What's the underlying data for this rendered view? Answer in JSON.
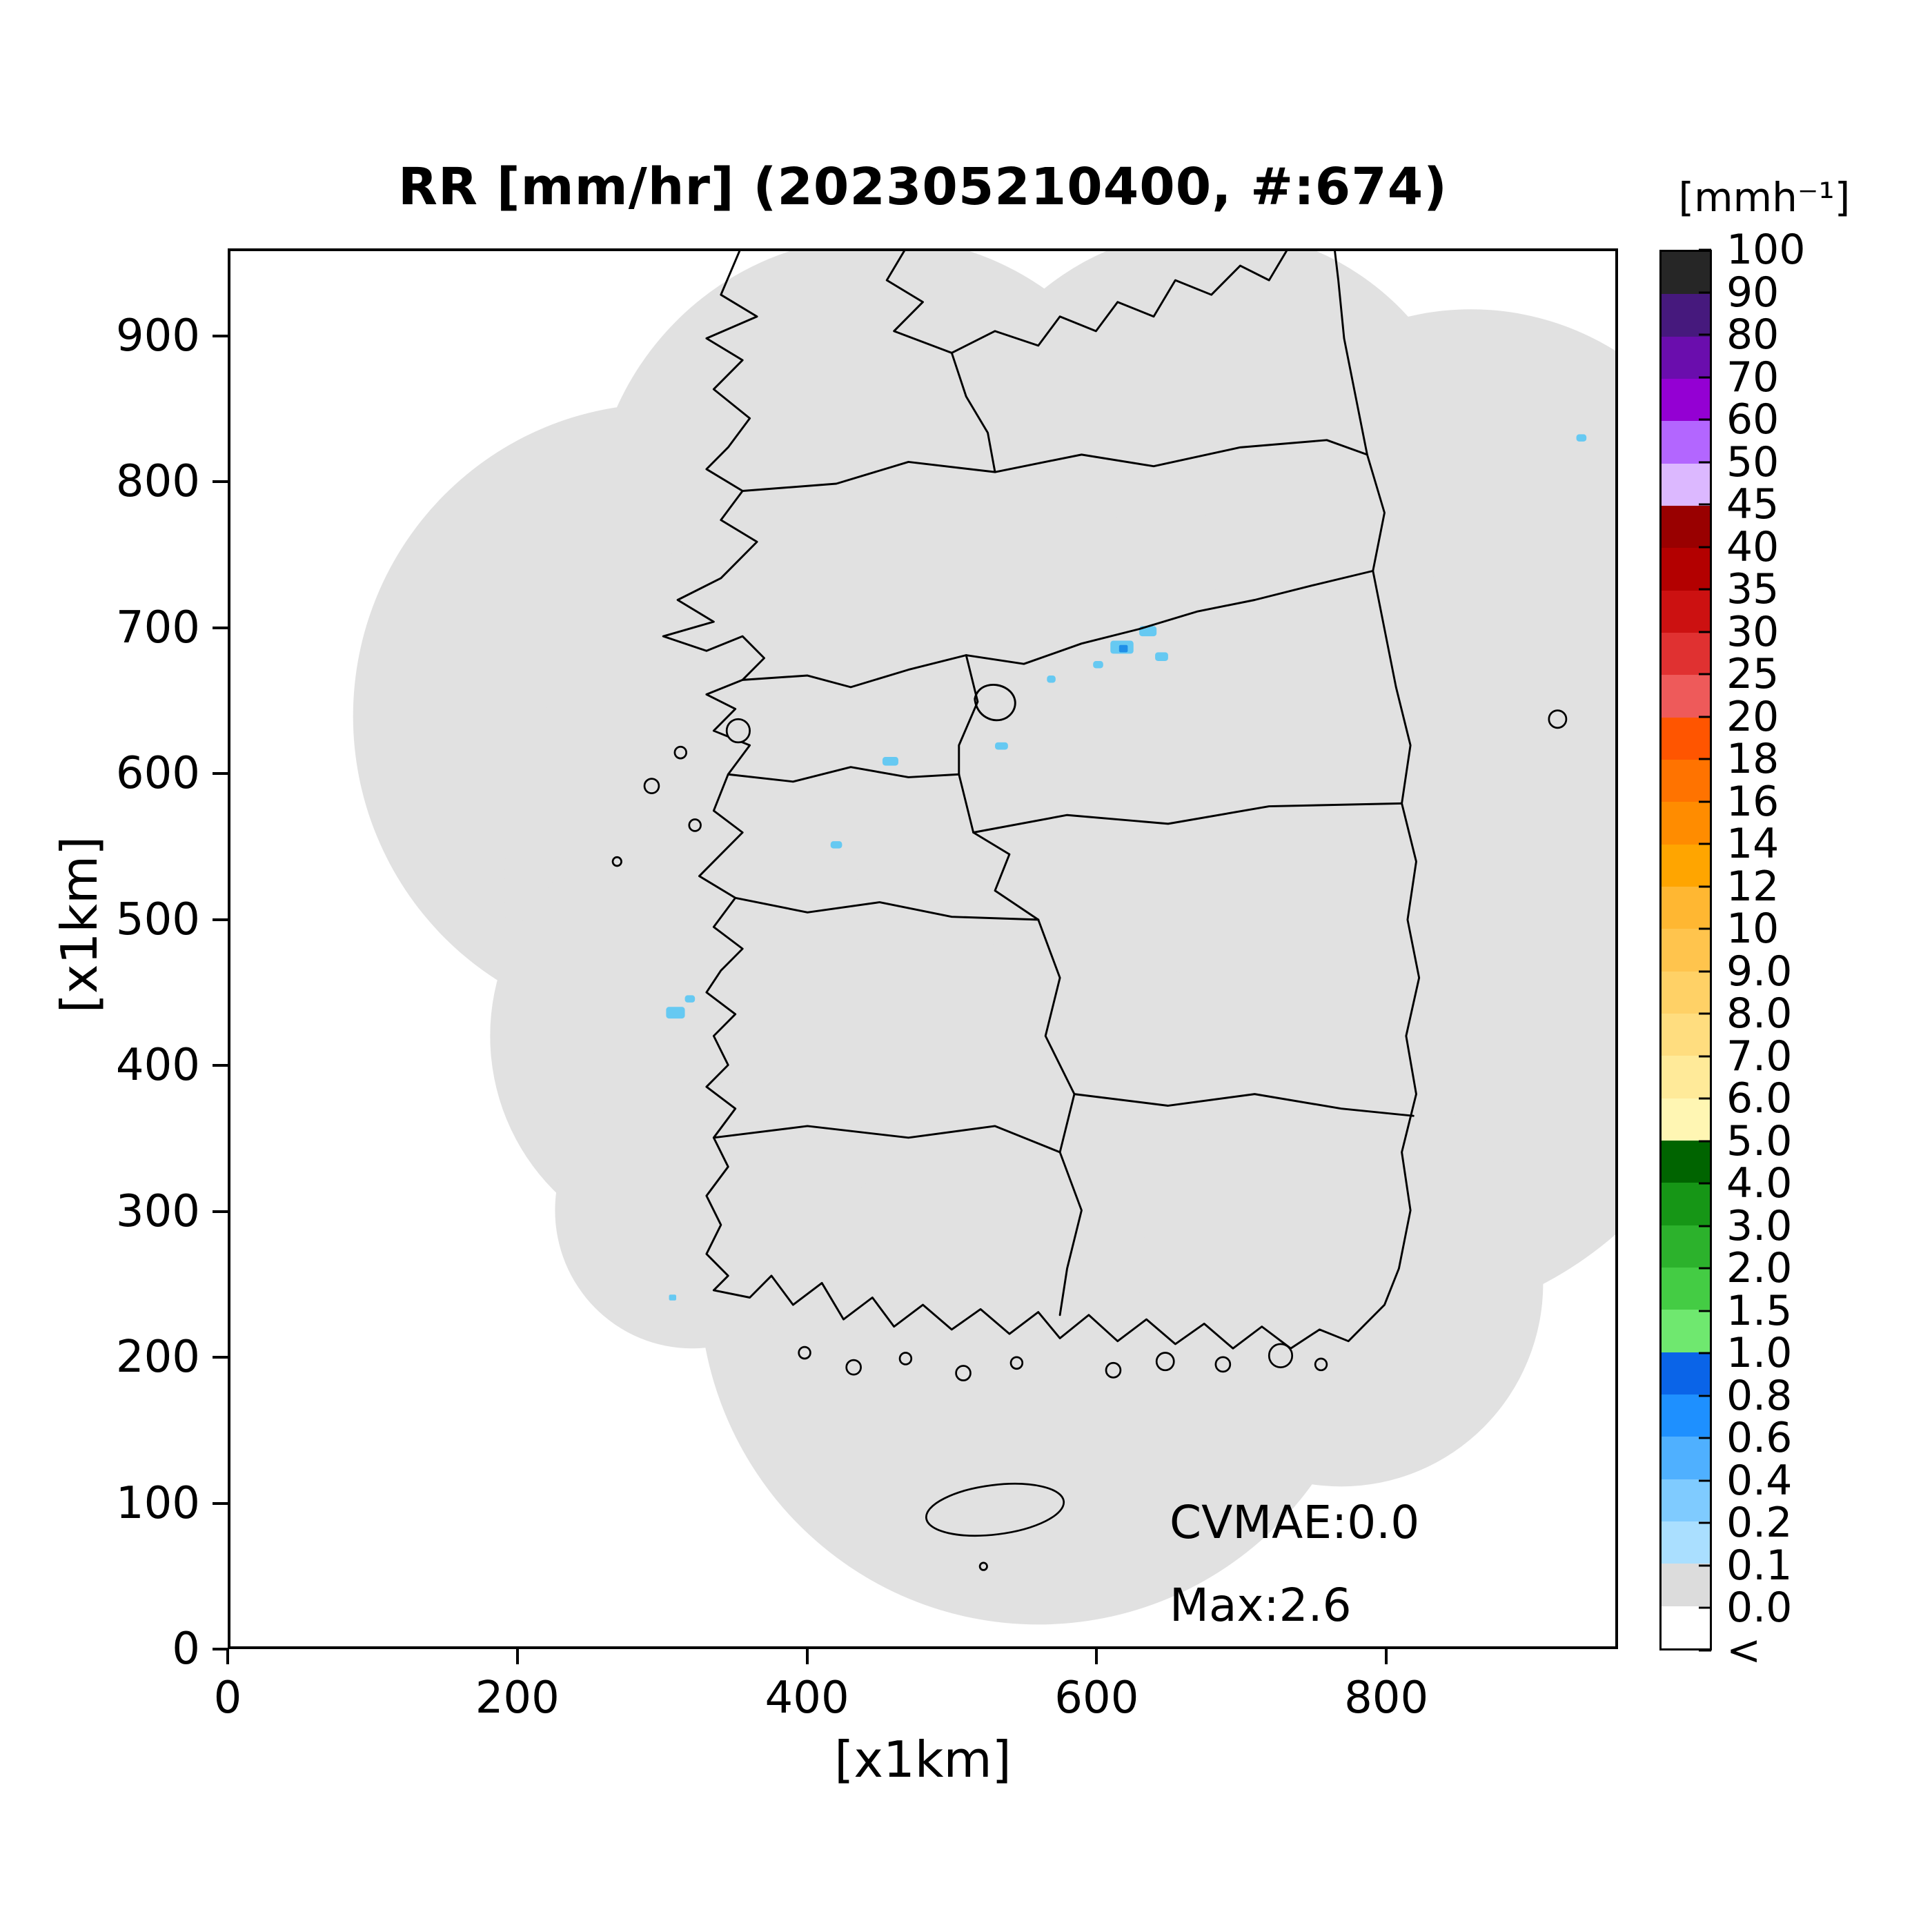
{
  "figure": {
    "title": "RR [mm/hr] (202305210400, #:674)",
    "xlabel": "[x1km]",
    "ylabel": "[x1km]",
    "annotations": {
      "cvmae": "CVMAE:0.0",
      "max": "Max:2.6"
    }
  },
  "axes": {
    "xlim": [
      0,
      960
    ],
    "ylim": [
      0,
      960
    ],
    "xticks": [
      0,
      200,
      400,
      600,
      800
    ],
    "yticks": [
      0,
      100,
      200,
      300,
      400,
      500,
      600,
      700,
      800,
      900
    ]
  },
  "colorbar": {
    "title": "[mmh⁻¹]",
    "labels": [
      "100",
      "90",
      "80",
      "70",
      "60",
      "50",
      "45",
      "40",
      "35",
      "30",
      "25",
      "20",
      "18",
      "16",
      "14",
      "12",
      "10",
      "9.0",
      "8.0",
      "7.0",
      "6.0",
      "5.0",
      "4.0",
      "3.0",
      "2.0",
      "1.5",
      "1.0",
      "0.8",
      "0.6",
      "0.4",
      "0.2",
      "0.1",
      "0.0",
      "<"
    ],
    "colors": [
      "#262626",
      "#46197d",
      "#6a0dad",
      "#9400d3",
      "#b366ff",
      "#dcb8ff",
      "#990000",
      "#b30000",
      "#cc1111",
      "#e03131",
      "#ee5a5a",
      "#ff5500",
      "#ff7300",
      "#ff8c00",
      "#ffa500",
      "#ffb732",
      "#ffc44d",
      "#ffd166",
      "#ffdd7f",
      "#ffea99",
      "#fff6b3",
      "#006400",
      "#169616",
      "#2cb22c",
      "#44cc44",
      "#6fe86f",
      "#0a64e8",
      "#1e90ff",
      "#4fb0ff",
      "#7fcbff",
      "#aadfff",
      "#dcdcdc",
      "#ffffff"
    ]
  },
  "colors": {
    "background": "#ffffff",
    "coverage_gray": "#e1e1e1",
    "boundary_black": "#000000",
    "precip_light": "#66c9f2",
    "precip_deep": "#1f8fe8"
  },
  "chart_data": {
    "type": "heatmap",
    "title": "RR [mm/hr] (202305210400, #:674)",
    "variable": "RR",
    "units": "mm/hr",
    "timestamp": "202305210400",
    "count": 674,
    "xlabel": "[x1km]",
    "ylabel": "[x1km]",
    "xlim": [
      0,
      960
    ],
    "ylim": [
      0,
      960
    ],
    "xticks": [
      0,
      200,
      400,
      600,
      800
    ],
    "yticks": [
      0,
      100,
      200,
      300,
      400,
      500,
      600,
      700,
      800,
      900
    ],
    "stats": {
      "CVMAE": 0.0,
      "Max": 2.6
    },
    "colorbar_units": "mmh⁻¹",
    "levels": [
      0.0,
      0.1,
      0.2,
      0.4,
      0.6,
      0.8,
      1.0,
      1.5,
      2.0,
      3.0,
      4.0,
      5.0,
      6.0,
      7.0,
      8.0,
      9.0,
      10,
      12,
      14,
      16,
      18,
      20,
      25,
      30,
      35,
      40,
      45,
      50,
      60,
      70,
      80,
      90,
      100
    ],
    "coverage": "light-gray shaded radar coverage formed by overlapping circular radar ranges over the Korean peninsula; values 0.0-0.1 mm/hr",
    "precip_cells_km": [
      {
        "x": 615,
        "y": 692,
        "v": 2.6
      },
      {
        "x": 635,
        "y": 700,
        "v": 1.0
      },
      {
        "x": 600,
        "y": 676,
        "v": 0.4
      },
      {
        "x": 645,
        "y": 682,
        "v": 0.6
      },
      {
        "x": 570,
        "y": 666,
        "v": 0.3
      },
      {
        "x": 533,
        "y": 618,
        "v": 0.2
      },
      {
        "x": 455,
        "y": 610,
        "v": 0.4
      },
      {
        "x": 419,
        "y": 552,
        "v": 0.3
      },
      {
        "x": 306,
        "y": 437,
        "v": 0.6
      },
      {
        "x": 318,
        "y": 445,
        "v": 0.3
      },
      {
        "x": 306,
        "y": 240,
        "v": 0.2
      },
      {
        "x": 936,
        "y": 833,
        "v": 0.3
      }
    ],
    "legend_position": "right-vertical-colorbar",
    "grid": false
  }
}
